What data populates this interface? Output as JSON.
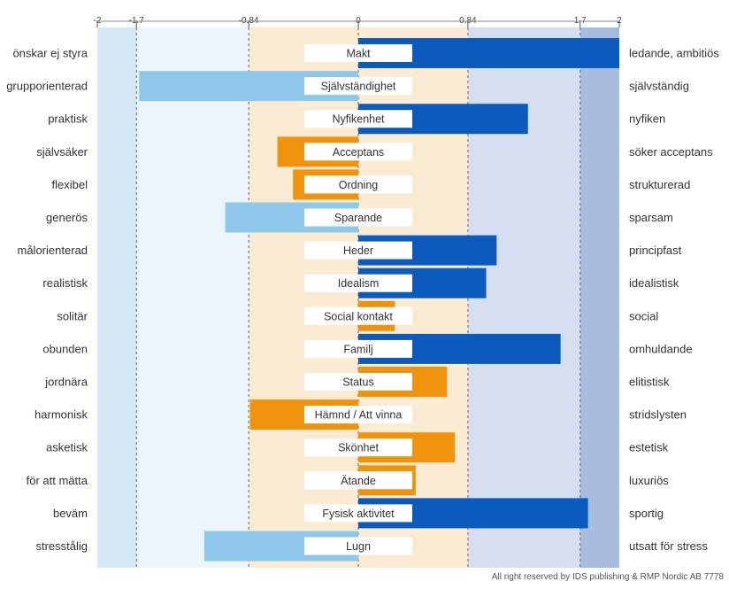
{
  "chart_data": {
    "type": "bar",
    "orientation": "horizontal-diverging",
    "xlim": [
      -2,
      2
    ],
    "ticks": [
      -2,
      -1.7,
      -0.84,
      0,
      0.84,
      1.7,
      2
    ],
    "tick_labels": [
      "-2",
      "-1.7",
      "-0.84",
      "0",
      "0.84",
      "1.7",
      "2"
    ],
    "zones": [
      {
        "from": -2,
        "to": -1.7,
        "color": "#d5e9f6"
      },
      {
        "from": -1.7,
        "to": -0.84,
        "color": "#eaf5fc"
      },
      {
        "from": -0.84,
        "to": 0.84,
        "color": "#fcebd3"
      },
      {
        "from": 0.84,
        "to": 1.7,
        "color": "#d6dff0"
      },
      {
        "from": 1.7,
        "to": 2,
        "color": "#a7bde0"
      }
    ],
    "colors": {
      "strong_positive": "#0b5bbf",
      "moderate": "#f0930c",
      "strong_negative": "#8ec8ea"
    },
    "categories": [
      "Makt",
      "Självständighet",
      "Nyfikenhet",
      "Acceptans",
      "Ordning",
      "Sparande",
      "Heder",
      "Idealism",
      "Social kontakt",
      "Familj",
      "Status",
      "Hämnd / Att vinna",
      "Skönhet",
      "Ätande",
      "Fysisk aktivitet",
      "Lugn"
    ],
    "left_labels": [
      "önskar ej styra",
      "grupporienterad",
      "praktisk",
      "självsäker",
      "flexibel",
      "generös",
      "målorienterad",
      "realistisk",
      "solitär",
      "obunden",
      "jordnära",
      "harmonisk",
      "asketisk",
      "för att mätta",
      "beväm",
      "stresstålig"
    ],
    "right_labels": [
      "ledande, ambitiös",
      "självständig",
      "nyfiken",
      "söker acceptans",
      "strukturerad",
      "sparsam",
      "principfast",
      "idealistisk",
      "social",
      "omhuldande",
      "elitistisk",
      "stridslysten",
      "estetisk",
      "luxuriös",
      "sportig",
      "utsatt för stress"
    ],
    "values": [
      2.0,
      -1.68,
      1.3,
      -0.62,
      -0.5,
      -1.02,
      1.06,
      0.98,
      0.28,
      1.55,
      0.68,
      -0.83,
      0.74,
      0.44,
      1.76,
      -1.18
    ]
  },
  "footer": "All right reserved by IDS publishing & RMP Nordic AB 7778"
}
